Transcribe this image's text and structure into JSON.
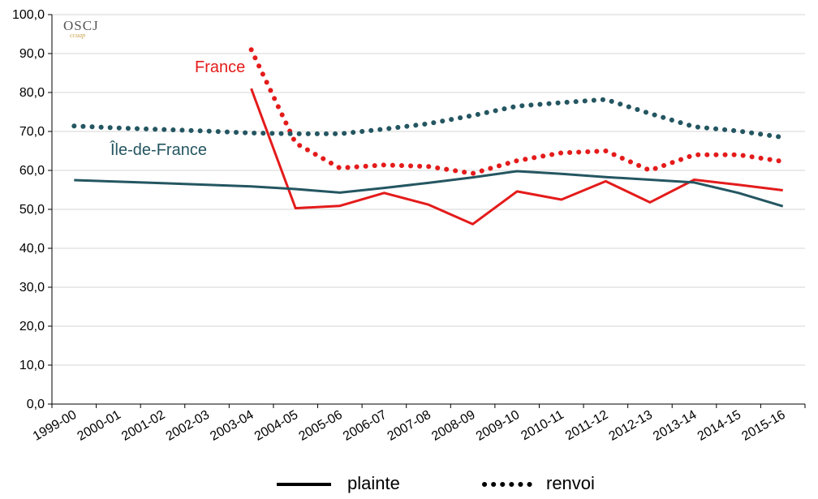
{
  "logo": {
    "text": "OSCJ",
    "subtext": "ccuap"
  },
  "chart_data": {
    "type": "line",
    "categories": [
      "1999-00",
      "2000-01",
      "2001-02",
      "2002-03",
      "2003-04",
      "2004-05",
      "2005-06",
      "2006-07",
      "2007-08",
      "2008-09",
      "2009-10",
      "2010-11",
      "2011-12",
      "2012-13",
      "2013-14",
      "2014-15",
      "2015-16"
    ],
    "ylim": [
      0,
      100
    ],
    "yticks": [
      0,
      10,
      20,
      30,
      40,
      50,
      60,
      70,
      80,
      90,
      100
    ],
    "ytick_labels": [
      "0,0",
      "10,0",
      "20,0",
      "30,0",
      "40,0",
      "50,0",
      "60,0",
      "70,0",
      "80,0",
      "90,0",
      "100,0"
    ],
    "grid": true,
    "series": [
      {
        "name": "",
        "region": "France",
        "kind": "plainte",
        "style": "solid",
        "color": "#e41b1b",
        "values": [
          null,
          null,
          null,
          null,
          81.0,
          50.3,
          50.9,
          54.2,
          51.2,
          46.2,
          54.6,
          52.5,
          57.2,
          51.8,
          57.6,
          56.3,
          54.9
        ]
      },
      {
        "name": "",
        "region": "France",
        "kind": "renvoi",
        "style": "dotted",
        "color": "#e41b1b",
        "values": [
          null,
          null,
          null,
          null,
          91.0,
          67.0,
          60.6,
          61.4,
          61.0,
          59.2,
          62.5,
          64.5,
          65.0,
          60.0,
          64.0,
          64.0,
          62.3
        ]
      },
      {
        "name": "",
        "region": "Île-de-France",
        "kind": "plainte",
        "style": "solid",
        "color": "#245661",
        "values": [
          57.5,
          57.1,
          56.7,
          56.3,
          55.9,
          55.2,
          54.3,
          55.5,
          56.8,
          58.2,
          59.8,
          59.1,
          58.3,
          57.6,
          56.9,
          54.2,
          50.8
        ]
      },
      {
        "name": "",
        "region": "Île-de-France",
        "kind": "renvoi",
        "style": "dotted",
        "color": "#245661",
        "values": [
          71.4,
          70.9,
          70.5,
          70.1,
          69.6,
          69.4,
          69.4,
          70.6,
          72.0,
          74.1,
          76.5,
          77.4,
          78.2,
          74.6,
          71.2,
          70.1,
          68.5
        ]
      }
    ],
    "labels": [
      {
        "text": "France",
        "color": "#e41b1b"
      },
      {
        "text": "Île-de-France",
        "color": "#245661"
      }
    ],
    "legend": {
      "placement": "bottom",
      "items": [
        {
          "label": "plainte",
          "style": "solid"
        },
        {
          "label": "renvoi",
          "style": "dotted"
        }
      ]
    }
  }
}
